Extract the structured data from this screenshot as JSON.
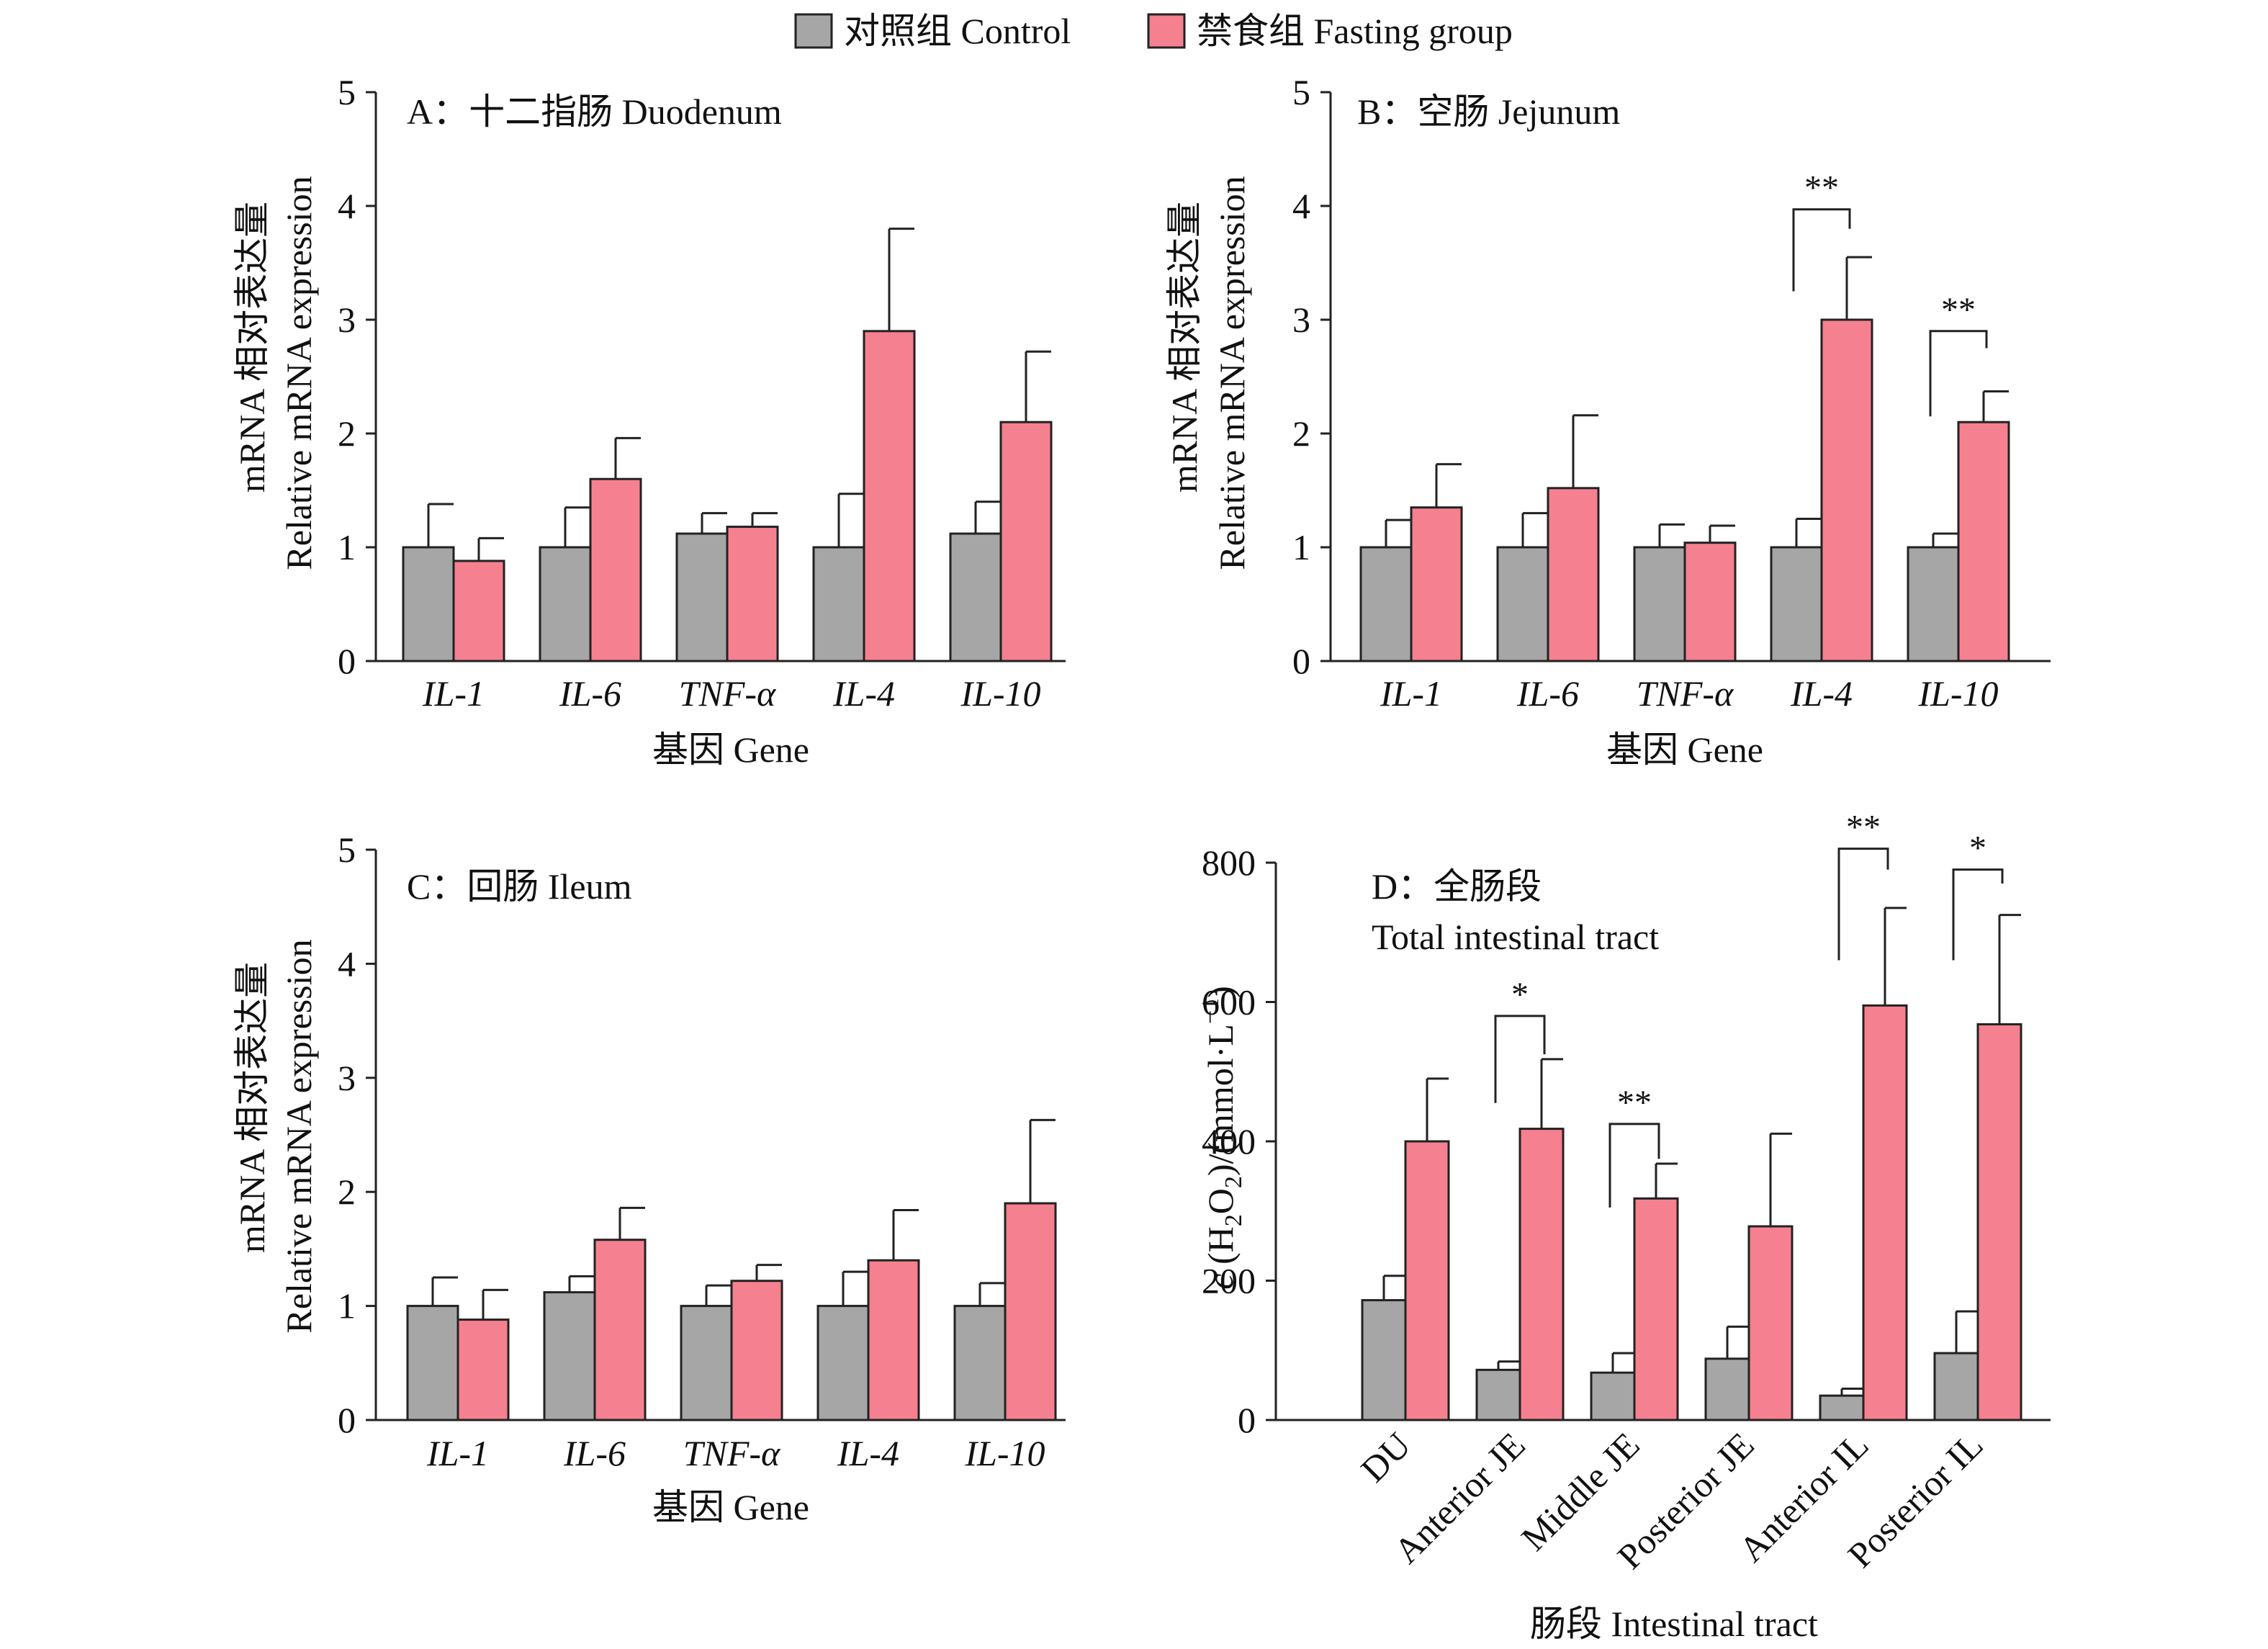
{
  "legend": {
    "control_label": "对照组 Control",
    "fasting_label": "禁食组 Fasting group",
    "control_color": "#a6a6a6",
    "fasting_color": "#f5808f"
  },
  "chart_data": [
    {
      "id": "A",
      "type": "bar",
      "panel_label": "A：十二指肠 Duodenum",
      "ylabel_line1": "mRNA 相对表达量",
      "ylabel_line2": "Relative mRNA expression",
      "xlabel": "基因 Gene",
      "ylim": [
        0,
        5
      ],
      "yticks": [
        "0",
        "1",
        "2",
        "3",
        "4",
        "5"
      ],
      "categories": [
        "IL-1",
        "IL-6",
        "TNF-α",
        "IL-4",
        "IL-10"
      ],
      "italic_categories": true,
      "series": [
        {
          "name": "对照组 Control",
          "values": [
            1.0,
            1.0,
            1.12,
            1.0,
            1.12
          ],
          "errors": [
            0.38,
            0.35,
            0.18,
            0.47,
            0.28
          ]
        },
        {
          "name": "禁食组 Fasting group",
          "values": [
            0.88,
            1.6,
            1.18,
            2.9,
            2.1
          ],
          "errors": [
            0.2,
            0.36,
            0.12,
            0.9,
            0.62
          ]
        }
      ],
      "significance": []
    },
    {
      "id": "B",
      "type": "bar",
      "panel_label": "B：空肠 Jejunum",
      "ylabel_line1": "mRNA 相对表达量",
      "ylabel_line2": "Relative mRNA expression",
      "xlabel": "基因 Gene",
      "ylim": [
        0,
        5
      ],
      "yticks": [
        "0",
        "1",
        "2",
        "3",
        "4",
        "5"
      ],
      "categories": [
        "IL-1",
        "IL-6",
        "TNF-α",
        "IL-4",
        "IL-10"
      ],
      "italic_categories": true,
      "series": [
        {
          "name": "对照组 Control",
          "values": [
            1.0,
            1.0,
            1.0,
            1.0,
            1.0
          ],
          "errors": [
            0.24,
            0.3,
            0.2,
            0.25,
            0.12
          ]
        },
        {
          "name": "禁食组 Fasting group",
          "values": [
            1.35,
            1.52,
            1.04,
            3.0,
            2.1
          ],
          "errors": [
            0.38,
            0.64,
            0.15,
            0.55,
            0.27
          ]
        }
      ],
      "significance": [
        {
          "category": 3,
          "label": "**",
          "top": 3.97,
          "left_bottom": 3.25,
          "right_bottom": 3.8
        },
        {
          "category": 4,
          "label": "**",
          "top": 2.9,
          "left_bottom": 2.15,
          "right_bottom": 2.75
        }
      ]
    },
    {
      "id": "C",
      "type": "bar",
      "panel_label": "C：回肠 Ileum",
      "ylabel_line1": "mRNA 相对表达量",
      "ylabel_line2": "Relative mRNA expression",
      "xlabel": "基因 Gene",
      "ylim": [
        0,
        5
      ],
      "yticks": [
        "0",
        "1",
        "2",
        "3",
        "4",
        "5"
      ],
      "categories": [
        "IL-1",
        "IL-6",
        "TNF-α",
        "IL-4",
        "IL-10"
      ],
      "italic_categories": true,
      "series": [
        {
          "name": "对照组 Control",
          "values": [
            1.0,
            1.12,
            1.0,
            1.0,
            1.0
          ],
          "errors": [
            0.25,
            0.14,
            0.18,
            0.3,
            0.2
          ]
        },
        {
          "name": "禁食组 Fasting group",
          "values": [
            0.88,
            1.58,
            1.22,
            1.4,
            1.9
          ],
          "errors": [
            0.26,
            0.28,
            0.14,
            0.44,
            0.73
          ]
        }
      ],
      "significance": []
    },
    {
      "id": "D",
      "type": "bar",
      "panel_label": "D：全肠段",
      "panel_label_line2": "Total intestinal tract",
      "ylabel_parts": {
        "italic_c": "c",
        "open": " (H",
        "sub": "2",
        "mid": "O",
        "sub2": "2",
        "close": ")/(mmol·L",
        "sup": "−1",
        "end": ")"
      },
      "xlabel": "肠段 Intestinal tract",
      "ylim": [
        0,
        800
      ],
      "yticks": [
        "0",
        "200",
        "400",
        "600",
        "800"
      ],
      "categories": [
        "DU",
        "Anterior JE",
        "Middle JE",
        "Posterior JE",
        "Anterior IL",
        "Posterior IL"
      ],
      "rotated_categories": true,
      "series": [
        {
          "name": "对照组 Control",
          "values": [
            172,
            72,
            68,
            88,
            35,
            96
          ],
          "errors": [
            35,
            12,
            28,
            46,
            10,
            60
          ]
        },
        {
          "name": "禁食组 Fasting group",
          "values": [
            400,
            418,
            318,
            278,
            595,
            568
          ],
          "errors": [
            90,
            100,
            50,
            133,
            140,
            157
          ]
        }
      ],
      "significance": [
        {
          "category": 1,
          "label": "*",
          "top": 580,
          "left_bottom": 455,
          "right_bottom": 525
        },
        {
          "category": 2,
          "label": "**",
          "top": 425,
          "left_bottom": 305,
          "right_bottom": 375
        },
        {
          "category": 4,
          "label": "**",
          "top": 820,
          "left_bottom": 660,
          "right_bottom": 790
        },
        {
          "category": 5,
          "label": "*",
          "top": 790,
          "left_bottom": 660,
          "right_bottom": 770
        }
      ]
    }
  ]
}
